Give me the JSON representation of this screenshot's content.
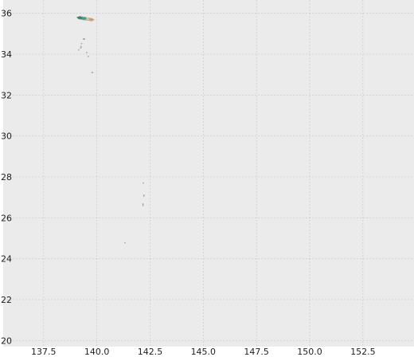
{
  "map": {
    "x_ticks": [
      "137.5",
      "140.0",
      "142.5",
      "145.0",
      "147.5",
      "150.0",
      "152.5"
    ],
    "y_ticks": [
      "36",
      "34",
      "32",
      "30",
      "28",
      "26",
      "24",
      "22",
      "20"
    ],
    "x_tick_values": [
      137.5,
      140.0,
      142.5,
      145.0,
      147.5,
      150.0,
      152.5
    ],
    "y_tick_values": [
      36,
      34,
      32,
      30,
      28,
      26,
      24,
      22,
      20
    ],
    "xlim": [
      135.6,
      154.9
    ],
    "ylim": [
      19.7,
      36.65
    ],
    "grid": true,
    "colors": {
      "plot_background": "#ebebeb",
      "grid": "#c4c4c4",
      "island_outline": "#cfcfcf",
      "region_green": "#2e8b57",
      "region_gray": "#8c8c8c",
      "region_orange": "#f0a050",
      "region_yellow": "#e6d070",
      "region_blue": "#6fa8dc",
      "region_teal": "#3aa0a0",
      "region_olive": "#9aaa40"
    },
    "features": [
      {
        "name": "mainland-coast",
        "type": "polygon",
        "coords": [
          [
            139.05,
            35.8
          ],
          [
            139.2,
            35.85
          ],
          [
            139.4,
            35.82
          ],
          [
            139.6,
            35.78
          ],
          [
            139.8,
            35.74
          ],
          [
            139.88,
            35.68
          ],
          [
            139.75,
            35.62
          ],
          [
            139.55,
            35.66
          ],
          [
            139.35,
            35.68
          ],
          [
            139.15,
            35.72
          ]
        ]
      },
      {
        "name": "region-west",
        "type": "polygon",
        "color_key": "region_green",
        "coords": [
          [
            139.05,
            35.8
          ],
          [
            139.2,
            35.85
          ],
          [
            139.35,
            35.8
          ],
          [
            139.3,
            35.72
          ],
          [
            139.15,
            35.72
          ]
        ]
      },
      {
        "name": "region-central",
        "type": "polygon",
        "color_key": "region_teal",
        "coords": [
          [
            139.35,
            35.8
          ],
          [
            139.5,
            35.8
          ],
          [
            139.52,
            35.7
          ],
          [
            139.35,
            35.68
          ],
          [
            139.3,
            35.72
          ]
        ]
      },
      {
        "name": "region-east-a",
        "type": "polygon",
        "color_key": "region_yellow",
        "coords": [
          [
            139.5,
            35.8
          ],
          [
            139.62,
            35.78
          ],
          [
            139.62,
            35.68
          ],
          [
            139.52,
            35.7
          ]
        ]
      },
      {
        "name": "region-east-b",
        "type": "polygon",
        "color_key": "region_orange",
        "coords": [
          [
            139.62,
            35.78
          ],
          [
            139.8,
            35.74
          ],
          [
            139.88,
            35.68
          ],
          [
            139.75,
            35.62
          ],
          [
            139.62,
            35.68
          ]
        ]
      },
      {
        "name": "region-east-c",
        "type": "polygon",
        "color_key": "region_blue",
        "coords": [
          [
            139.7,
            35.72
          ],
          [
            139.8,
            35.72
          ],
          [
            139.78,
            35.66
          ],
          [
            139.7,
            35.66
          ]
        ]
      },
      {
        "name": "oshima",
        "type": "polygon",
        "color_key": "region_gray",
        "coords": [
          [
            139.36,
            34.78
          ],
          [
            139.44,
            34.77
          ],
          [
            139.43,
            34.7
          ],
          [
            139.36,
            34.71
          ]
        ]
      },
      {
        "name": "toshima",
        "type": "dot",
        "lon": 139.28,
        "lat": 34.52
      },
      {
        "name": "niijima",
        "type": "polygon",
        "coords": [
          [
            139.24,
            34.4
          ],
          [
            139.28,
            34.38
          ],
          [
            139.26,
            34.28
          ],
          [
            139.22,
            34.3
          ]
        ]
      },
      {
        "name": "kozushima",
        "type": "dot",
        "lon": 139.15,
        "lat": 34.21
      },
      {
        "name": "miyakejima",
        "type": "dot",
        "lon": 139.52,
        "lat": 34.08
      },
      {
        "name": "mikurajima",
        "type": "dot",
        "lon": 139.6,
        "lat": 33.89
      },
      {
        "name": "hachijojima",
        "type": "polygon",
        "coords": [
          [
            139.76,
            33.13
          ],
          [
            139.82,
            33.12
          ],
          [
            139.8,
            33.08
          ],
          [
            139.75,
            33.09
          ]
        ]
      },
      {
        "name": "chichijima-north",
        "type": "dot",
        "lon": 142.18,
        "lat": 27.7
      },
      {
        "name": "chichijima",
        "type": "polygon",
        "coords": [
          [
            142.19,
            27.12
          ],
          [
            142.23,
            27.12
          ],
          [
            142.22,
            27.04
          ],
          [
            142.19,
            27.05
          ]
        ]
      },
      {
        "name": "hahajima",
        "type": "polygon",
        "coords": [
          [
            142.15,
            26.7
          ],
          [
            142.19,
            26.68
          ],
          [
            142.18,
            26.58
          ],
          [
            142.15,
            26.59
          ]
        ]
      },
      {
        "name": "iwoto",
        "type": "dot",
        "lon": 141.32,
        "lat": 24.78
      }
    ]
  }
}
